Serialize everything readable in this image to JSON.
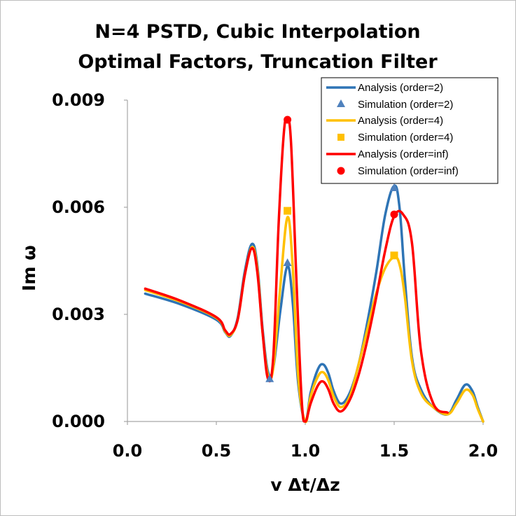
{
  "chart_data": {
    "type": "line",
    "title_lines": [
      "N=4 PSTD, Cubic Interpolation",
      "Optimal Factors, Truncation Filter"
    ],
    "xlabel": "v Δt/Δz",
    "ylabel": "Im ω",
    "xlim": [
      0.0,
      2.0
    ],
    "ylim": [
      0.0,
      0.009
    ],
    "x_ticks": [
      "0.0",
      "0.5",
      "1.0",
      "1.5",
      "2.0"
    ],
    "x_tick_values": [
      0.0,
      0.5,
      1.0,
      1.5,
      2.0
    ],
    "y_ticks": [
      "0.000",
      "0.003",
      "0.006",
      "0.009"
    ],
    "y_tick_values": [
      0.0,
      0.003,
      0.006,
      0.009
    ],
    "series": [
      {
        "name": "Analysis (order=2)",
        "kind": "line",
        "color": "#2e74b5",
        "x": [
          0.1,
          0.3,
          0.5,
          0.55,
          0.58,
          0.62,
          0.66,
          0.7,
          0.73,
          0.76,
          0.79,
          0.82,
          0.86,
          0.9,
          0.93,
          0.96,
          1.0,
          1.03,
          1.07,
          1.1,
          1.13,
          1.16,
          1.2,
          1.25,
          1.3,
          1.35,
          1.4,
          1.45,
          1.5,
          1.53,
          1.56,
          1.6,
          1.65,
          1.72,
          1.8,
          1.85,
          1.9,
          1.94,
          1.97,
          2.0
        ],
        "y": [
          0.00358,
          0.00328,
          0.00285,
          0.0025,
          0.0024,
          0.0029,
          0.0042,
          0.00497,
          0.0044,
          0.0026,
          0.0014,
          0.0015,
          0.0031,
          0.00435,
          0.0033,
          0.0011,
          0.0,
          0.0008,
          0.00145,
          0.0016,
          0.00135,
          0.00085,
          0.0005,
          0.0008,
          0.0016,
          0.0028,
          0.0042,
          0.0058,
          0.0066,
          0.006,
          0.004,
          0.0018,
          0.0009,
          0.0004,
          0.0002,
          0.0006,
          0.00103,
          0.00085,
          0.0004,
          0.0
        ]
      },
      {
        "name": "Simulation (order=2)",
        "kind": "triangle",
        "color": "#4f81bd",
        "x": [
          0.8,
          0.9,
          1.5
        ],
        "y": [
          0.0012,
          0.00445,
          0.00655
        ]
      },
      {
        "name": "Analysis (order=4)",
        "kind": "line",
        "color": "#ffc000",
        "x": [
          0.1,
          0.3,
          0.5,
          0.55,
          0.58,
          0.62,
          0.66,
          0.7,
          0.73,
          0.76,
          0.79,
          0.82,
          0.86,
          0.9,
          0.93,
          0.96,
          1.0,
          1.03,
          1.07,
          1.1,
          1.13,
          1.16,
          1.2,
          1.25,
          1.3,
          1.35,
          1.4,
          1.45,
          1.5,
          1.53,
          1.56,
          1.6,
          1.65,
          1.72,
          1.8,
          1.85,
          1.9,
          1.94,
          1.97,
          2.0
        ],
        "y": [
          0.00368,
          0.00335,
          0.0029,
          0.00252,
          0.00242,
          0.00285,
          0.0041,
          0.00488,
          0.0043,
          0.0025,
          0.0013,
          0.0015,
          0.0038,
          0.00572,
          0.0043,
          0.0013,
          0.0,
          0.0007,
          0.00125,
          0.00138,
          0.00115,
          0.0007,
          0.0004,
          0.0007,
          0.0016,
          0.0026,
          0.0036,
          0.0043,
          0.0046,
          0.0044,
          0.0035,
          0.0017,
          0.0008,
          0.0004,
          0.0002,
          0.0005,
          0.00088,
          0.00075,
          0.00035,
          0.0
        ]
      },
      {
        "name": "Simulation (order=4)",
        "kind": "square",
        "color": "#ffc000",
        "x": [
          0.9,
          1.5
        ],
        "y": [
          0.0059,
          0.00465
        ]
      },
      {
        "name": "Analysis (order=inf)",
        "kind": "line",
        "color": "#ff0000",
        "x": [
          0.1,
          0.3,
          0.5,
          0.55,
          0.58,
          0.62,
          0.66,
          0.7,
          0.73,
          0.76,
          0.79,
          0.82,
          0.85,
          0.88,
          0.9,
          0.92,
          0.95,
          0.98,
          1.0,
          1.03,
          1.07,
          1.1,
          1.13,
          1.16,
          1.2,
          1.25,
          1.3,
          1.35,
          1.4,
          1.45,
          1.5,
          1.55,
          1.6,
          1.65,
          1.72,
          1.8
        ],
        "y": [
          0.00372,
          0.00338,
          0.00292,
          0.00255,
          0.00245,
          0.00285,
          0.0041,
          0.00485,
          0.0042,
          0.0025,
          0.0012,
          0.0018,
          0.0055,
          0.0081,
          0.00845,
          0.0078,
          0.004,
          0.0006,
          0.0,
          0.0005,
          0.001,
          0.00112,
          0.0009,
          0.0005,
          0.00028,
          0.0006,
          0.0013,
          0.0023,
          0.0035,
          0.0048,
          0.00575,
          0.0058,
          0.005,
          0.002,
          0.0005,
          0.00025
        ]
      },
      {
        "name": "Simulation (order=inf)",
        "kind": "circle",
        "color": "#ff0000",
        "x": [
          0.9,
          1.5
        ],
        "y": [
          0.00845,
          0.0058
        ]
      }
    ],
    "legend_position": "top-right"
  }
}
